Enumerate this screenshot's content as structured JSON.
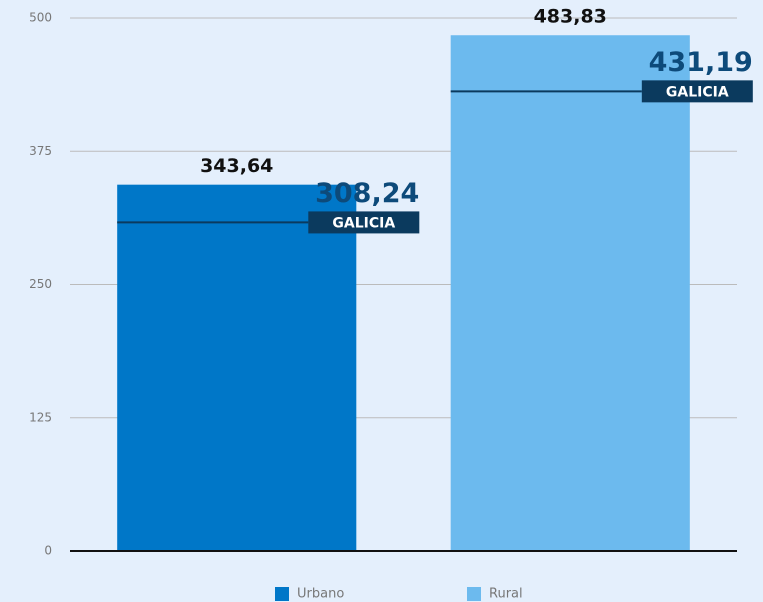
{
  "chart_data": {
    "type": "bar",
    "categories": [
      null
    ],
    "series": [
      {
        "name": "Urbano",
        "color": "#0077c8",
        "values": [
          343.64
        ],
        "value_labels": [
          "343,64"
        ],
        "reference": {
          "name": "GALICIA",
          "value": 308.24,
          "value_label": "308,24"
        }
      },
      {
        "name": "Rural",
        "color": "#6cbaee",
        "values": [
          483.83
        ],
        "value_labels": [
          "483,83"
        ],
        "reference": {
          "name": "GALICIA",
          "value": 431.19,
          "value_label": "431,19"
        }
      }
    ],
    "ylim": [
      0,
      500
    ],
    "yticks": [
      0,
      125,
      250,
      375,
      500
    ],
    "grid": true,
    "legend": "bottom"
  }
}
